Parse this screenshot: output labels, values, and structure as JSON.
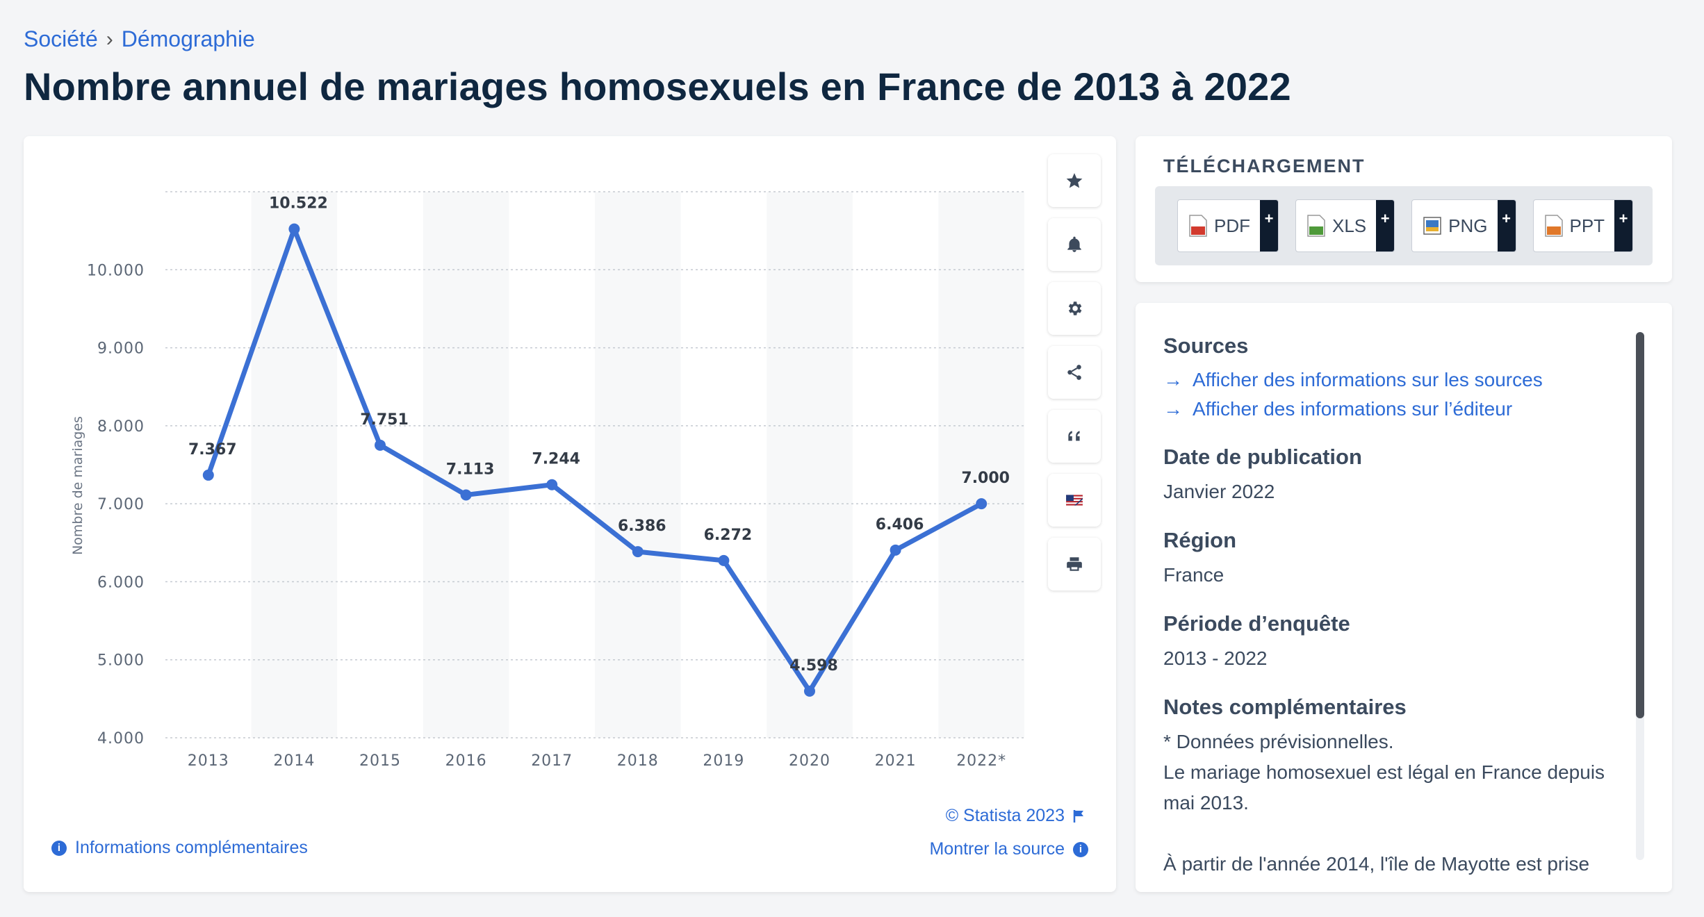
{
  "breadcrumb": {
    "items": [
      "Société",
      "Démographie"
    ],
    "separator": "›"
  },
  "page_title": "Nombre annuel de mariages homosexuels en France de 2013 à 2022",
  "toolbar": {
    "icons": [
      "star-icon",
      "bell-icon",
      "gear-icon",
      "share-icon",
      "quote-icon",
      "flag-uk-us-icon",
      "print-icon"
    ]
  },
  "chart_data": {
    "type": "line",
    "categories": [
      "2013",
      "2014",
      "2015",
      "2016",
      "2017",
      "2018",
      "2019",
      "2020",
      "2021",
      "2022*"
    ],
    "values": [
      7367,
      10522,
      7751,
      7113,
      7244,
      6386,
      6272,
      4598,
      6406,
      7000
    ],
    "data_labels": [
      "7.367",
      "10.522",
      "7.751",
      "7.113",
      "7.244",
      "6.386",
      "6.272",
      "4.598",
      "6.406",
      "7.000"
    ],
    "title": "",
    "xlabel": "",
    "ylabel": "Nombre de mariages",
    "ylim": [
      4000,
      11000
    ],
    "yticks": [
      4000,
      5000,
      6000,
      7000,
      8000,
      9000,
      10000
    ],
    "ytick_labels": [
      "4.000",
      "5.000",
      "6.000",
      "7.000",
      "8.000",
      "9.000",
      "10.000"
    ],
    "grid": true,
    "line_color": "#3b70d4"
  },
  "chart_footer": {
    "copyright": "© Statista 2023",
    "more_info": "Informations complémentaires",
    "show_source": "Montrer la source"
  },
  "download": {
    "title": "TÉLÉCHARGEMENT",
    "buttons": [
      {
        "label": "PDF",
        "plus": "+",
        "color": "#d23a2e"
      },
      {
        "label": "XLS",
        "plus": "+",
        "color": "#4f9a3a"
      },
      {
        "label": "PNG",
        "plus": "+",
        "color": "#3a78c4"
      },
      {
        "label": "PPT",
        "plus": "+",
        "color": "#e0782a"
      }
    ]
  },
  "info": {
    "sources_title": "Sources",
    "sources_links": [
      "Afficher des informations sur les sources",
      "Afficher des informations sur l’éditeur"
    ],
    "date_title": "Date de publication",
    "date_value": "Janvier 2022",
    "region_title": "Région",
    "region_value": "France",
    "period_title": "Période d’enquête",
    "period_value": "2013 - 2022",
    "notes_title": "Notes complémentaires",
    "notes_line1": "* Données prévisionnelles.",
    "notes_line2": "Le mariage homosexuel est légal en France depuis mai 2013.",
    "notes_line3": "À partir de l'année 2014, l'île de Mayotte est prise"
  }
}
